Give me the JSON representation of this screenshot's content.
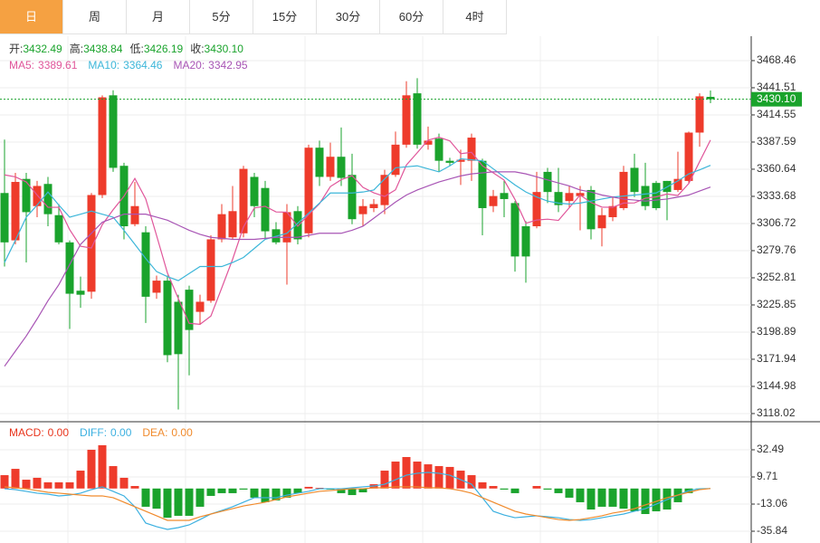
{
  "tabs": {
    "items": [
      "日",
      "周",
      "月",
      "5分",
      "15分",
      "30分",
      "60分",
      "4时"
    ],
    "selected": 0
  },
  "chart_data": [
    {
      "type": "candlestick",
      "up_color": "#ee3b2b",
      "down_color": "#1aa32c",
      "readout_color": "#1aa32c",
      "readout": [
        {
          "label": "开:",
          "value": "3432.49"
        },
        {
          "label": "高:",
          "value": "3438.84"
        },
        {
          "label": "低:",
          "value": "3426.19"
        },
        {
          "label": "收:",
          "value": "3430.10"
        }
      ],
      "open": [
        3337,
        3290,
        3351,
        3324,
        3346,
        3315,
        3288,
        3240,
        3239,
        3335,
        3434,
        3364,
        3306,
        3298,
        3238,
        3250,
        3229,
        3241,
        3219,
        3230,
        3291,
        3293,
        3297,
        3353,
        3342,
        3301,
        3288,
        3319,
        3297,
        3382,
        3353,
        3373,
        3355,
        3316,
        3322,
        3325,
        3355,
        3385,
        3436,
        3385,
        3391,
        3369,
        3368,
        3369,
        3369,
        3324,
        3337,
        3327,
        3304,
        3304,
        3358,
        3338,
        3329,
        3334,
        3340,
        3302,
        3313,
        3322,
        3362,
        3344,
        3347,
        3349,
        3340,
        3349,
        3397,
        3432.49
      ],
      "high": [
        3390,
        3357,
        3357,
        3349,
        3353,
        3326,
        3290,
        3254,
        3337,
        3434,
        3439,
        3367,
        3348,
        3304,
        3255,
        3255,
        3236,
        3245,
        3236,
        3295,
        3326,
        3344,
        3364,
        3357,
        3349,
        3308,
        3326,
        3324,
        3385,
        3389,
        3387,
        3402,
        3376,
        3331,
        3331,
        3360,
        3398,
        3448,
        3451,
        3403,
        3396,
        3372,
        3380,
        3396,
        3371,
        3340,
        3349,
        3329,
        3309,
        3358,
        3362,
        3362,
        3344,
        3344,
        3344,
        3322,
        3333,
        3364,
        3376,
        3367,
        3349,
        3349,
        3378,
        3398,
        3436,
        3438.84
      ],
      "low": [
        3264,
        3286,
        3268,
        3313,
        3304,
        3286,
        3202,
        3223,
        3232,
        3332,
        3358,
        3291,
        3304,
        3208,
        3232,
        3169,
        3122,
        3156,
        3206,
        3228,
        3288,
        3291,
        3293,
        3313,
        3291,
        3286,
        3246,
        3286,
        3293,
        3344,
        3349,
        3344,
        3306,
        3304,
        3318,
        3316,
        3353,
        3382,
        3381,
        3380,
        3358,
        3364,
        3345,
        3349,
        3295,
        3318,
        3313,
        3259,
        3248,
        3302,
        3327,
        3318,
        3322,
        3300,
        3291,
        3284,
        3309,
        3320,
        3333,
        3320,
        3320,
        3310,
        3338,
        3347,
        3383,
        3426.19
      ],
      "close": [
        3288,
        3348,
        3318,
        3344,
        3316,
        3288,
        3237,
        3236,
        3335,
        3432,
        3362,
        3304,
        3324,
        3234,
        3250,
        3176,
        3177,
        3201,
        3229,
        3291,
        3316,
        3319,
        3361,
        3324,
        3299,
        3288,
        3318,
        3291,
        3382,
        3353,
        3373,
        3352,
        3311,
        3324,
        3326,
        3355,
        3385,
        3434,
        3385,
        3389,
        3369,
        3367,
        3370,
        3392,
        3322,
        3334,
        3331,
        3274,
        3274,
        3338,
        3338,
        3325,
        3337,
        3337,
        3301,
        3315,
        3324,
        3358,
        3338,
        3324,
        3322,
        3338,
        3351,
        3397,
        3433,
        3430.1
      ],
      "series": [
        {
          "name": "MA5:",
          "last_label": "3389.61",
          "color": "#e0569a",
          "values": [
            3355,
            3353,
            3348,
            3335,
            3322.8,
            3322.8,
            3300.6,
            3284.2,
            3282.4,
            3305.6,
            3320.4,
            3333.8,
            3351.4,
            3331.2,
            3294.8,
            3257.6,
            3232.2,
            3207.6,
            3206.6,
            3214.8,
            3242.8,
            3271.2,
            3303.2,
            3322.2,
            3323.8,
            3318.2,
            3318,
            3304,
            3315.6,
            3326.4,
            3343.4,
            3350.2,
            3354.2,
            3342.6,
            3337.2,
            3333.6,
            3340.2,
            3364.8,
            3377,
            3389.6,
            3392.4,
            3388.8,
            3376,
            3377.4,
            3364,
            3357,
            3349.8,
            3330.6,
            3307,
            3310.2,
            3311,
            3309.8,
            3322.4,
            3335,
            3327.6,
            3323,
            3322.8,
            3327,
            3327.2,
            3331.8,
            3333.2,
            3336,
            3334.6,
            3346.4,
            3368.2,
            3389.61
          ]
        },
        {
          "name": "MA10:",
          "last_label": "3364.46",
          "color": "#3cb6d9",
          "values": [
            3268,
            3290,
            3313,
            3325,
            3338,
            3325,
            3313,
            3316,
            3319,
            3316,
            3313,
            3300,
            3286,
            3272,
            3259,
            3254,
            3250,
            3257,
            3264,
            3264,
            3264,
            3268,
            3273,
            3282,
            3291,
            3294,
            3297,
            3307,
            3317,
            3327,
            3337,
            3337,
            3337,
            3338,
            3340,
            3351,
            3362,
            3363,
            3364,
            3361,
            3358,
            3364,
            3371,
            3370,
            3369,
            3361,
            3353,
            3345,
            3338,
            3333,
            3329,
            3327,
            3326,
            3327,
            3329,
            3331,
            3333,
            3334,
            3335,
            3336,
            3337,
            3343,
            3349,
            3356,
            3360,
            3364.46
          ]
        },
        {
          "name": "MA20:",
          "last_label": "3342.95",
          "color": "#a855b5",
          "values": [
            3165,
            3180,
            3195,
            3212,
            3230,
            3246,
            3266,
            3286,
            3297,
            3308,
            3312,
            3316,
            3316,
            3316,
            3313,
            3310,
            3305,
            3300,
            3296,
            3293,
            3292,
            3291,
            3291,
            3291,
            3292,
            3293,
            3293,
            3293,
            3295,
            3297,
            3297,
            3297,
            3300,
            3304,
            3312,
            3320,
            3328,
            3335,
            3340,
            3344,
            3348,
            3351,
            3354,
            3356,
            3357,
            3358,
            3358,
            3358,
            3356,
            3353,
            3350,
            3347,
            3344,
            3340,
            3338,
            3335,
            3333,
            3331,
            3330,
            3329,
            3330,
            3331,
            3333,
            3335,
            3339,
            3342.95
          ]
        }
      ],
      "last_price": {
        "value": 3430.1,
        "label": "3430.10",
        "color": "#1aa32c"
      },
      "ylim": [
        3110.8,
        3492.7
      ],
      "yticks": [
        3468.46,
        3441.51,
        3414.55,
        3387.59,
        3360.64,
        3333.68,
        3306.72,
        3279.76,
        3252.81,
        3225.85,
        3198.89,
        3171.94,
        3144.98,
        3118.02
      ],
      "grid": true
    },
    {
      "type": "macd",
      "histogram": {
        "name": "MACD:",
        "last_label": "0.00",
        "color": "#e8341c",
        "up_color": "#ee3b2b",
        "down_color": "#1aa32c",
        "values": [
          11.2,
          16.5,
          7.4,
          9,
          5.2,
          5.2,
          5.2,
          15,
          32.5,
          36.3,
          18.8,
          9,
          2.1,
          -15.3,
          -16.9,
          -24.5,
          -22.9,
          -22.9,
          -15.3,
          -6.2,
          -3.9,
          -3.9,
          -0.9,
          -7.7,
          -11.5,
          -10,
          -7.7,
          -3.9,
          1.4,
          0.6,
          -0.9,
          -3.9,
          -5.5,
          -3.2,
          3.6,
          15,
          22.6,
          26.4,
          22.6,
          20.3,
          18.8,
          18.1,
          15,
          11.2,
          5.2,
          2.1,
          -0.9,
          -3.9,
          0,
          2.1,
          -0.9,
          -3.9,
          -7.7,
          -11.5,
          -17.6,
          -15.3,
          -15.3,
          -16.9,
          -19.1,
          -21.4,
          -19.1,
          -17.6,
          -11.5,
          -3.9,
          -0.2,
          0
        ]
      },
      "series": [
        {
          "name": "DIFF:",
          "last_label": "0.00",
          "color": "#3cb0e0",
          "values": [
            -0.2,
            -0.9,
            -2.4,
            -3.9,
            -4.7,
            -6.2,
            -5.5,
            -3.9,
            -0.9,
            1.4,
            -2.4,
            -6.2,
            -15.3,
            -29,
            -32,
            -34.3,
            -32.8,
            -30.5,
            -26,
            -21.4,
            -18.4,
            -15.3,
            -11.5,
            -7.7,
            -7.7,
            -7.7,
            -5.5,
            -3.9,
            -2.4,
            -0.2,
            -0.2,
            -0.2,
            0.6,
            1.4,
            2.1,
            3.6,
            7.4,
            11.2,
            12.8,
            13.5,
            12.8,
            11.2,
            7.4,
            3.6,
            -7.7,
            -19.1,
            -22.2,
            -24.5,
            -23.7,
            -22.9,
            -23.7,
            -24.5,
            -26,
            -26.7,
            -26,
            -24.5,
            -22.9,
            -21.4,
            -19.1,
            -16.9,
            -13.1,
            -9.3,
            -5.5,
            -1.7,
            -0.2,
            0
          ]
        },
        {
          "name": "DEA:",
          "last_label": "0.00",
          "color": "#f08a2c",
          "values": [
            1.4,
            0.6,
            -0.2,
            -1.7,
            -3.2,
            -3.9,
            -4.7,
            -5.5,
            -6.2,
            -6.2,
            -7.7,
            -11.5,
            -15.3,
            -19.1,
            -22.9,
            -26.7,
            -26.7,
            -26.7,
            -23.7,
            -21.4,
            -19.1,
            -16.9,
            -14.6,
            -13.1,
            -11.5,
            -9.3,
            -7,
            -5.5,
            -3.9,
            -2.4,
            -1.7,
            -0.9,
            -0.2,
            -0.2,
            0.6,
            0.6,
            1.4,
            1.4,
            1.4,
            0.6,
            0.6,
            -0.2,
            -1.7,
            -3.9,
            -7.7,
            -11.5,
            -15.3,
            -19.1,
            -21.4,
            -22.9,
            -24.5,
            -26,
            -26.7,
            -26,
            -24.5,
            -22.9,
            -20.6,
            -19.1,
            -16.9,
            -13.8,
            -10.8,
            -7.7,
            -5.5,
            -3.2,
            -0.9,
            0
          ]
        }
      ],
      "ylim": [
        -45.7,
        54.5
      ],
      "yticks": [
        32.49,
        9.71,
        -13.06,
        -35.84
      ],
      "grid": true
    }
  ]
}
